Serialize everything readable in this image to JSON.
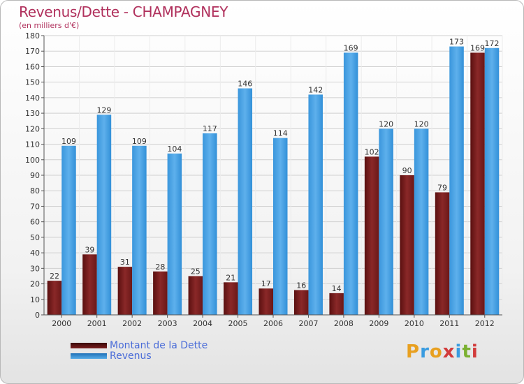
{
  "header": {
    "title": "Revenus/Dette - CHAMPAGNEY",
    "unit": "(en milliers d'€)"
  },
  "chart_data": {
    "type": "bar",
    "title": "Revenus/Dette - CHAMPAGNEY",
    "ylabel": "(en milliers d'€)",
    "xlabel": "",
    "ylim": [
      0,
      180
    ],
    "y_ticks": [
      0,
      10,
      20,
      30,
      40,
      50,
      60,
      70,
      80,
      90,
      100,
      110,
      120,
      130,
      140,
      150,
      160,
      170,
      180
    ],
    "categories": [
      "2000",
      "2001",
      "2002",
      "2003",
      "2004",
      "2005",
      "2006",
      "2007",
      "2008",
      "2009",
      "2010",
      "2011",
      "2012"
    ],
    "series": [
      {
        "name": "Montant de la Dette",
        "color": "#7a1e1e",
        "values": [
          22,
          39,
          31,
          28,
          25,
          21,
          17,
          16,
          14,
          102,
          90,
          79,
          169
        ]
      },
      {
        "name": "Revenus",
        "color": "#3a9ce0",
        "values": [
          109,
          129,
          109,
          104,
          117,
          146,
          114,
          142,
          169,
          120,
          120,
          173,
          172
        ]
      }
    ],
    "grid": true,
    "legend": "bottom-left"
  },
  "legend": {
    "items": [
      "Montant de la Dette",
      "Revenus"
    ]
  },
  "logo": {
    "letters": [
      "P",
      "r",
      "o",
      "x",
      "i",
      "t",
      "i"
    ],
    "colors": [
      "#e8a020",
      "#3a9ce0",
      "#e8a020",
      "#d23b3b",
      "#3a9ce0",
      "#7ab030",
      "#d23b3b"
    ]
  }
}
